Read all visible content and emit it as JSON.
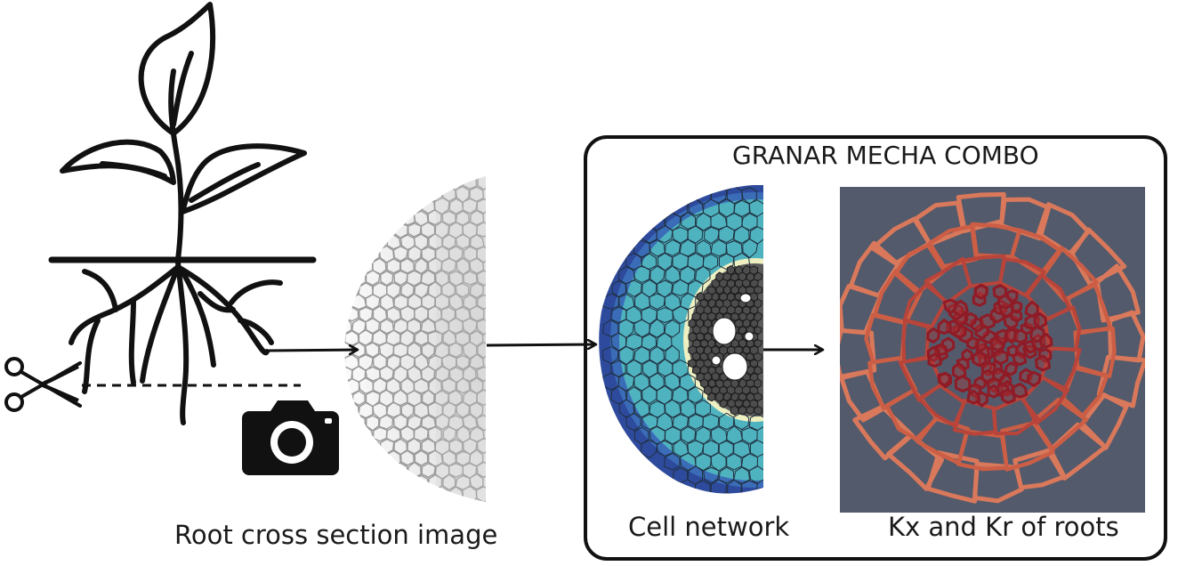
{
  "box_title": "GRANAR MECHA COMBO",
  "labels": {
    "root_image": "Root cross section image",
    "cell_network": "Cell network",
    "kx_kr": "Kx and Kr of roots"
  },
  "icons": [
    "plant-icon",
    "scissors-icon",
    "camera-icon"
  ],
  "colors": {
    "ink": "#111111",
    "panel_bg": "#535a6b",
    "outer_ring": "#2e4a9c",
    "cortex": "#4fb2bf",
    "stele": "#5a5a5a",
    "endodermis": "#eef0c2",
    "wall_outer": "#d9785b",
    "wall_inner": "#8e1b26"
  }
}
